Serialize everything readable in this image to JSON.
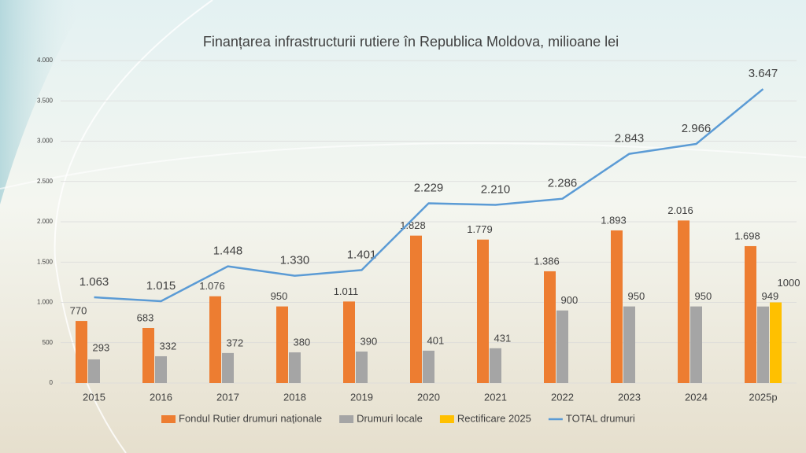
{
  "chart_data": {
    "type": "bar-line",
    "title": "Finanțarea infrastructurii rutiere în Republica Moldova, milioane lei",
    "categories": [
      "2015",
      "2016",
      "2017",
      "2018",
      "2019",
      "2020",
      "2021",
      "2022",
      "2023",
      "2024",
      "2025p"
    ],
    "series": [
      {
        "name": "Fondul Rutier drumuri naționale",
        "type": "bar",
        "color": "#ED7D31",
        "values": [
          770,
          683,
          1076,
          950,
          1011,
          1828,
          1779,
          1386,
          1893,
          2016,
          1698
        ],
        "value_labels": [
          "770",
          "683",
          "1.076",
          "950",
          "1.011",
          "1.828",
          "1.779",
          "1.386",
          "1.893",
          "2.016",
          "1.698"
        ]
      },
      {
        "name": "Drumuri locale",
        "type": "bar",
        "color": "#A5A5A5",
        "values": [
          293,
          332,
          372,
          380,
          390,
          401,
          431,
          900,
          950,
          950,
          949
        ]
      },
      {
        "name": "Rectificare 2025",
        "type": "bar",
        "color": "#FFC000",
        "values": [
          null,
          null,
          null,
          null,
          null,
          null,
          null,
          null,
          null,
          null,
          1000
        ]
      },
      {
        "name": "TOTAL drumuri",
        "type": "line",
        "color": "#5B9BD5",
        "values": [
          1063,
          1015,
          1448,
          1330,
          1401,
          2229,
          2210,
          2286,
          2843,
          2966,
          3647
        ],
        "value_labels": [
          "1.063",
          "1.015",
          "1.448",
          "1.330",
          "1.401",
          "2.229",
          "2.210",
          "2.286",
          "2.843",
          "2.966",
          "3.647"
        ]
      }
    ],
    "ylim": [
      0,
      4000
    ],
    "yticks": [
      0,
      500,
      {
        "value": 1000,
        "label": "1.000"
      },
      {
        "value": 1500,
        "label": "1.500"
      },
      {
        "value": 2000,
        "label": "2.000"
      },
      {
        "value": 2500,
        "label": "2.500"
      },
      {
        "value": 3000,
        "label": "3.000"
      },
      {
        "value": 3500,
        "label": "3.500"
      },
      {
        "value": 4000,
        "label": "4.000"
      }
    ],
    "grid": true,
    "legend": "bottom"
  }
}
